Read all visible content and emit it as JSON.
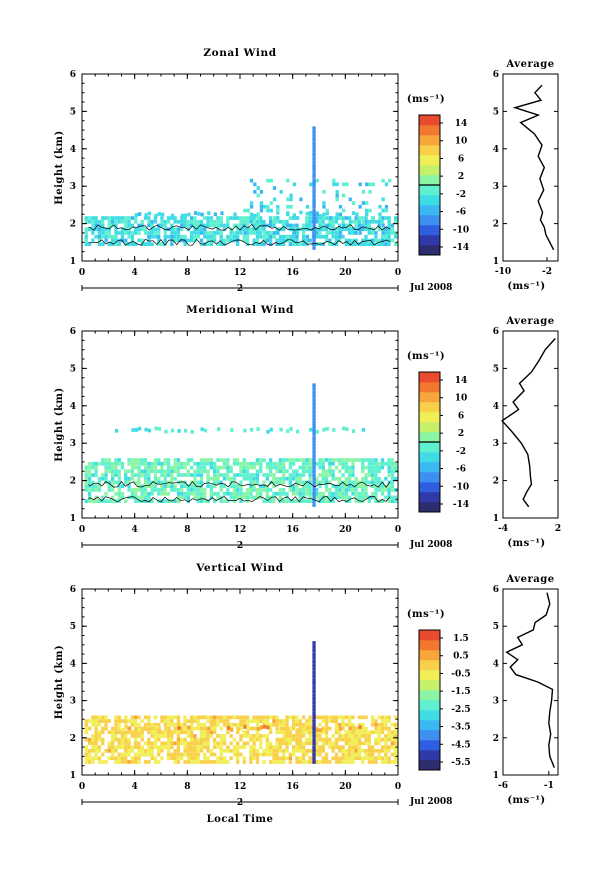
{
  "figure": {
    "x_axis_label": "Local Time",
    "date_label": "Jul 2008",
    "day_number": "2",
    "avg_unit": "(ms⁻¹)",
    "cbar_unit": "(ms⁻¹)"
  },
  "chart_data": [
    {
      "type": "heatmap",
      "title": "Zonal Wind",
      "xlabel": "",
      "ylabel": "Height (km)",
      "x_ticks": [
        "0",
        "4",
        "8",
        "12",
        "16",
        "20",
        "0"
      ],
      "x_range_hours": [
        0,
        24
      ],
      "y_ticks": [
        "1",
        "2",
        "3",
        "4",
        "5",
        "6"
      ],
      "ylim": [
        1,
        6
      ],
      "colorbar": {
        "ticks": [
          "14",
          "10",
          "6",
          "2",
          "-2",
          "-6",
          "-10",
          "-14"
        ],
        "range": [
          -16,
          16
        ],
        "zero_line": 0
      },
      "average_profile": {
        "title": "Average",
        "xlabel": "(ms⁻¹)",
        "x_ticks": [
          "-10",
          "-2"
        ],
        "xlim": [
          -10,
          0
        ],
        "height_km": [
          1.3,
          1.5,
          1.7,
          1.9,
          2.1,
          2.3,
          2.6,
          2.9,
          3.2,
          3.5,
          3.8,
          4.1,
          4.4,
          4.7,
          4.9,
          5.1,
          5.3,
          5.5,
          5.7
        ],
        "wind": [
          -0.8,
          -1.5,
          -2.2,
          -2.5,
          -3.2,
          -2.8,
          -3.6,
          -2.6,
          -3.3,
          -2.5,
          -3.6,
          -2.9,
          -4.3,
          -6.8,
          -3.6,
          -7.8,
          -3.1,
          -4.2,
          -2.9
        ]
      },
      "heatmap_summary": {
        "main_layer_km": [
          1.4,
          2.2
        ],
        "main_layer_wind_ms": [
          -5,
          -1
        ],
        "vertical_streak_hour": 17.5,
        "vertical_streak_top_km": 4.6,
        "vertical_streak_wind_ms": -7,
        "late_patches_km": [
          1.6,
          3.2
        ]
      }
    },
    {
      "type": "heatmap",
      "title": "Meridional Wind",
      "xlabel": "",
      "ylabel": "Height (km)",
      "x_ticks": [
        "0",
        "4",
        "8",
        "12",
        "16",
        "20",
        "0"
      ],
      "x_range_hours": [
        0,
        24
      ],
      "y_ticks": [
        "1",
        "2",
        "3",
        "4",
        "5",
        "6"
      ],
      "ylim": [
        1,
        6
      ],
      "colorbar": {
        "ticks": [
          "14",
          "10",
          "6",
          "2",
          "-2",
          "-6",
          "-10",
          "-14"
        ],
        "range": [
          -16,
          16
        ],
        "zero_line": 0
      },
      "average_profile": {
        "title": "Average",
        "xlabel": "(ms⁻¹)",
        "x_ticks": [
          "-4",
          "2"
        ],
        "xlim": [
          -4,
          2
        ],
        "height_km": [
          1.3,
          1.5,
          1.7,
          1.9,
          2.1,
          2.4,
          2.7,
          3.0,
          3.3,
          3.6,
          3.9,
          4.1,
          4.4,
          4.6,
          4.9,
          5.2,
          5.5,
          5.8
        ],
        "wind": [
          -1.2,
          -1.8,
          -1.4,
          -0.9,
          -1.0,
          -1.1,
          -1.3,
          -2.0,
          -3.0,
          -4.1,
          -2.3,
          -2.9,
          -1.7,
          -2.2,
          -0.9,
          -0.1,
          0.6,
          1.7
        ]
      },
      "heatmap_summary": {
        "main_layer_km": [
          1.4,
          2.6
        ],
        "main_layer_wind_ms": [
          -3,
          2
        ],
        "upper_band_km": 3.3,
        "vertical_streak_hour": 17.5,
        "vertical_streak_top_km": 4.6
      }
    },
    {
      "type": "heatmap",
      "title": "Vertical Wind",
      "xlabel": "Local Time",
      "ylabel": "Height (km)",
      "x_ticks": [
        "0",
        "4",
        "8",
        "12",
        "16",
        "20",
        "0"
      ],
      "x_range_hours": [
        0,
        24
      ],
      "y_ticks": [
        "1",
        "2",
        "3",
        "4",
        "5",
        "6"
      ],
      "ylim": [
        1,
        6
      ],
      "colorbar": {
        "ticks": [
          "1.5",
          "0.5",
          "-0.5",
          "-1.5",
          "-2.5",
          "-3.5",
          "-4.5",
          "-5.5"
        ],
        "range": [
          -6,
          2
        ],
        "zero_line": null
      },
      "average_profile": {
        "title": "Average",
        "xlabel": "(ms⁻¹)",
        "x_ticks": [
          "-6",
          "-1"
        ],
        "xlim": [
          -6,
          0
        ],
        "height_km": [
          1.2,
          1.5,
          1.8,
          2.1,
          2.4,
          2.7,
          3.0,
          3.3,
          3.5,
          3.7,
          3.9,
          4.1,
          4.3,
          4.5,
          4.7,
          4.9,
          5.1,
          5.3,
          5.6,
          5.9
        ],
        "wind": [
          -0.4,
          -0.9,
          -1.0,
          -0.8,
          -1.0,
          -0.9,
          -0.7,
          -0.6,
          -2.2,
          -4.6,
          -5.2,
          -4.4,
          -5.6,
          -3.9,
          -4.4,
          -2.7,
          -2.5,
          -1.3,
          -0.9,
          -1.2
        ]
      },
      "heatmap_summary": {
        "main_layer_km": [
          1.3,
          2.6
        ],
        "main_layer_wind_ms": [
          -0.7,
          0.3
        ],
        "vertical_streak_hour": 17.5,
        "vertical_streak_top_km": 4.6,
        "vertical_streak_wind_ms": -5
      }
    }
  ]
}
